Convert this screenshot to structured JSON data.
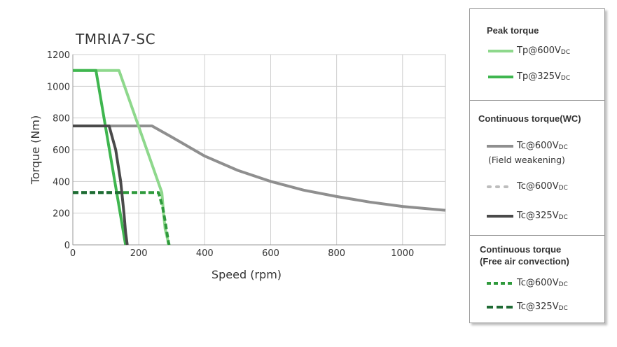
{
  "chart_data": {
    "type": "line",
    "title": "TMRIA7-SC",
    "xlabel": "Speed (rpm)",
    "ylabel": "Torque (Nm)",
    "xlim": [
      0,
      1130
    ],
    "ylim": [
      0,
      1200
    ],
    "xticks": [
      0,
      200,
      400,
      600,
      800,
      1000
    ],
    "yticks": [
      0,
      200,
      400,
      600,
      800,
      1000,
      1200
    ],
    "grid": true,
    "legend_position": "right",
    "legend_groups": [
      "Peak torque",
      "Continuous torque(WC)",
      "Continuous torque (Free air convection)"
    ],
    "series": [
      {
        "name": "Tp@600VDC",
        "label_main": "Tp@600V",
        "label_sub": "DC",
        "group": "Peak torque",
        "color": "#8ed88c",
        "style": "solid",
        "x": [
          0,
          140,
          270,
          275,
          280,
          288,
          290
        ],
        "y": [
          1100,
          1100,
          330,
          200,
          100,
          30,
          0
        ]
      },
      {
        "name": "Tp@325VDC",
        "label_main": "Tp@325V",
        "label_sub": "DC",
        "group": "Peak torque",
        "color": "#3fb64f",
        "style": "solid",
        "x": [
          0,
          70,
          160
        ],
        "y": [
          1100,
          1100,
          0
        ]
      },
      {
        "name": "Tc@600VDC (Field weakening)",
        "label_main": "Tc@600V",
        "label_sub": "DC",
        "note": "(Field weakening)",
        "group": "Continuous torque(WC)",
        "color": "#8f8f8f",
        "style": "solid",
        "x": [
          0,
          240,
          300,
          400,
          500,
          600,
          700,
          800,
          900,
          1000,
          1130
        ],
        "y": [
          750,
          750,
          680,
          560,
          470,
          400,
          345,
          305,
          270,
          242,
          218
        ]
      },
      {
        "name": "Tc@600VDC",
        "label_main": "Tc@600V",
        "label_sub": "DC",
        "group": "Continuous torque(WC)",
        "color": "#bdbdbd",
        "style": "dotted",
        "x": [],
        "y": []
      },
      {
        "name": "Tc@325VDC",
        "label_main": "Tc@325V",
        "label_sub": "DC",
        "group": "Continuous torque(WC)",
        "color": "#4a4a4a",
        "style": "solid",
        "x": [
          0,
          110,
          130,
          145,
          155,
          160,
          165
        ],
        "y": [
          750,
          750,
          600,
          400,
          200,
          80,
          0
        ]
      },
      {
        "name": "Tc@600VDC (free air)",
        "label_main": "Tc@600V",
        "label_sub": "DC",
        "group": "Continuous torque (Free air convection)",
        "color": "#2f9a3c",
        "style": "dashed",
        "x": [
          0,
          260,
          272,
          280,
          286,
          290,
          292
        ],
        "y": [
          330,
          330,
          240,
          150,
          70,
          20,
          0
        ]
      },
      {
        "name": "Tc@325VDC (free air)",
        "label_main": "Tc@325V",
        "label_sub": "DC",
        "group": "Continuous torque (Free air convection)",
        "color": "#1f6b34",
        "style": "dashed",
        "x": [
          0,
          150
        ],
        "y": [
          330,
          330
        ]
      }
    ]
  },
  "legend": {
    "peak_heading": "Peak torque",
    "wc_heading": "Continuous torque(WC)",
    "fac_heading_line1": "Continuous torque",
    "fac_heading_line2": "(Free air convection)"
  }
}
